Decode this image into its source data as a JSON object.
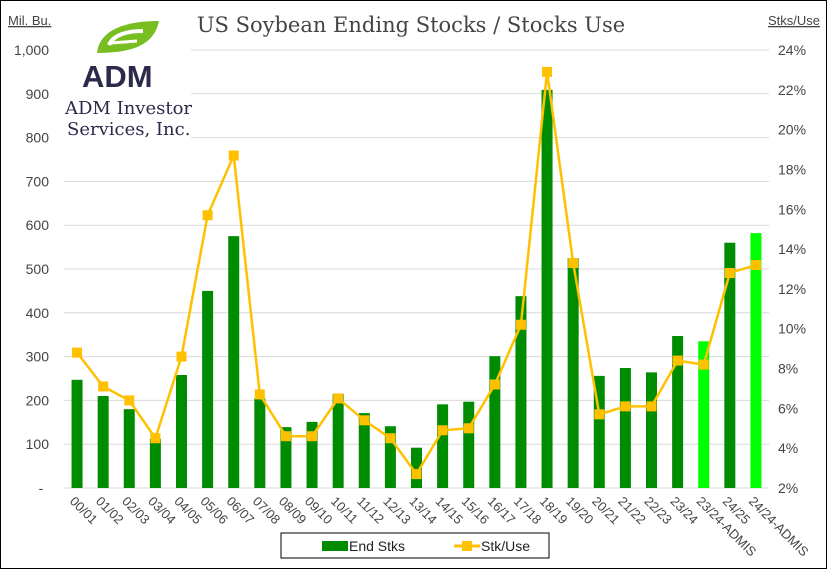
{
  "chart_data": {
    "type": "bar+line",
    "title": "US Soybean Ending Stocks / Stocks Use",
    "left_axis_label": "Mil. Bu.",
    "right_axis_label": "Stks/Use",
    "left_ticks": [
      "-",
      "100",
      "200",
      "300",
      "400",
      "500",
      "600",
      "700",
      "800",
      "900",
      "1,000"
    ],
    "right_ticks": [
      "2%",
      "4%",
      "6%",
      "8%",
      "10%",
      "12%",
      "14%",
      "16%",
      "18%",
      "20%",
      "22%",
      "24%"
    ],
    "ylim_left": [
      0,
      1000
    ],
    "ylim_right": [
      2,
      24
    ],
    "grid": true,
    "legend_position": "bottom",
    "categories": [
      "00/01",
      "01/02",
      "02/03",
      "03/04",
      "04/05",
      "05/06",
      "06/07",
      "07/08",
      "08/09",
      "09/10",
      "10/11",
      "11/12",
      "12/13",
      "13/14",
      "14/15",
      "15/16",
      "16/17",
      "17/18",
      "18/19",
      "19/20",
      "20/21",
      "21/22",
      "22/23",
      "23/24",
      "23/24-ADMIS",
      "24/25",
      "24/24-ADMIS"
    ],
    "series": [
      {
        "name": "End Stks",
        "type": "bar",
        "axis": "left",
        "color": "#008c00",
        "highlight_color": "#00ff00",
        "highlight_categories": [
          "23/24-ADMIS",
          "24/24-ADMIS"
        ],
        "values": [
          247,
          210,
          180,
          112,
          258,
          450,
          575,
          205,
          139,
          151,
          215,
          171,
          141,
          92,
          191,
          197,
          301,
          438,
          909,
          525,
          256,
          274,
          264,
          347,
          335,
          560,
          582
        ]
      },
      {
        "name": "Stk/Use",
        "type": "line",
        "axis": "right",
        "unit": "%",
        "color": "#ffc000",
        "values": [
          8.8,
          7.1,
          6.4,
          4.5,
          8.6,
          15.7,
          18.7,
          6.7,
          4.6,
          4.6,
          6.5,
          5.4,
          4.5,
          2.7,
          4.9,
          5.0,
          7.2,
          10.2,
          22.9,
          13.3,
          5.7,
          6.1,
          6.1,
          8.4,
          8.2,
          12.8,
          13.2
        ]
      }
    ]
  },
  "logo": {
    "brand": "ADM",
    "company_line1": "ADM Investor",
    "company_line2": "Services, Inc."
  }
}
